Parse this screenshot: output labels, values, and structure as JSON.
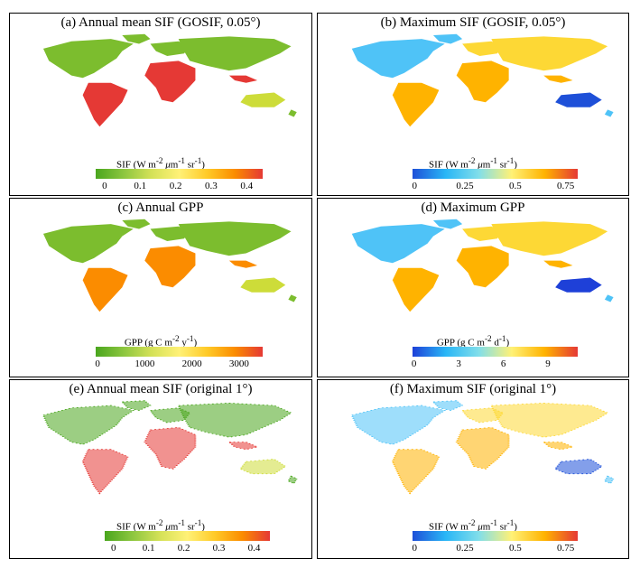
{
  "panels": [
    {
      "title": "(a) Annual mean SIF (GOSIF, 0.05°)",
      "palette": "green-yellow-red",
      "colorbar": {
        "label_html": "SIF (W m<sup>-2</sup> <i>μ</i>m<sup>-1</sup> sr<sup>-1</sup>)",
        "ticks": [
          "0",
          "0.1",
          "0.2",
          "0.3",
          "0.4"
        ],
        "tick_values": [
          0,
          0.1,
          0.2,
          0.3,
          0.4
        ],
        "range": [
          -0.025,
          0.445
        ]
      },
      "map_style": "continuous",
      "colors": {
        "forest": "#e53935",
        "default": "#7cbd2e"
      }
    },
    {
      "title": "(b) Maximum SIF (GOSIF, 0.05°)",
      "palette": "blue-yellow-red",
      "colorbar": {
        "label_html": "SIF (W m<sup>-2</sup> <i>μ</i>m<sup>-1</sup> sr<sup>-1</sup>)",
        "ticks": [
          "0",
          "0.25",
          "0.5",
          "0.75"
        ],
        "tick_values": [
          0,
          0.25,
          0.5,
          0.75
        ],
        "range": [
          -0.01,
          0.81
        ]
      },
      "map_style": "continuous",
      "colors": {
        "low": "#1e50d8",
        "high": "#e53935"
      }
    },
    {
      "title": "(c) Annual GPP",
      "palette": "green-yellow-red",
      "colorbar": {
        "label_html": "GPP (g C m<sup>-2</sup> y<sup>-1</sup>)",
        "ticks": [
          "0",
          "1000",
          "2000",
          "3000"
        ],
        "tick_values": [
          0,
          1000,
          2000,
          3000
        ],
        "range": [
          -40,
          3500
        ]
      },
      "map_style": "continuous",
      "colors": {
        "forest": "#fb8c00",
        "default": "#7cbd2e"
      }
    },
    {
      "title": "(d) Maximum GPP",
      "palette": "blue-yellow-red",
      "colorbar": {
        "label_html": "GPP (g C m<sup>-2</sup> d<sup>-1</sup>)",
        "ticks": [
          "0",
          "3",
          "6",
          "9"
        ],
        "tick_values": [
          0,
          3,
          6,
          9
        ],
        "range": [
          -0.1,
          11
        ]
      },
      "map_style": "continuous",
      "colors": {
        "low": "#1e40d8",
        "high": "#e53935"
      }
    },
    {
      "title": "(e) Annual mean SIF (original 1°)",
      "palette": "green-yellow-red",
      "colorbar": {
        "label_html": "SIF (W m<sup>-2</sup> <i>μ</i>m<sup>-1</sup> sr<sup>-1</sup>)",
        "ticks": [
          "0",
          "0.1",
          "0.2",
          "0.3",
          "0.4"
        ],
        "tick_values": [
          0,
          0.1,
          0.2,
          0.3,
          0.4
        ],
        "range": [
          -0.025,
          0.445
        ]
      },
      "map_style": "dotted",
      "colors": {
        "forest": "#e53935",
        "default": "#4aa61e"
      }
    },
    {
      "title": "(f) Maximum SIF (original 1°)",
      "palette": "blue-yellow-red",
      "colorbar": {
        "label_html": "SIF (W m<sup>-2</sup> <i>μ</i>m<sup>-1</sup> sr<sup>-1</sup>)",
        "ticks": [
          "0",
          "0.25",
          "0.5",
          "0.75"
        ],
        "tick_values": [
          0,
          0.25,
          0.5,
          0.75
        ],
        "range": [
          -0.01,
          0.81
        ]
      },
      "map_style": "dotted",
      "colors": {
        "low": "#1e50d8",
        "high": "#e53935"
      }
    }
  ]
}
